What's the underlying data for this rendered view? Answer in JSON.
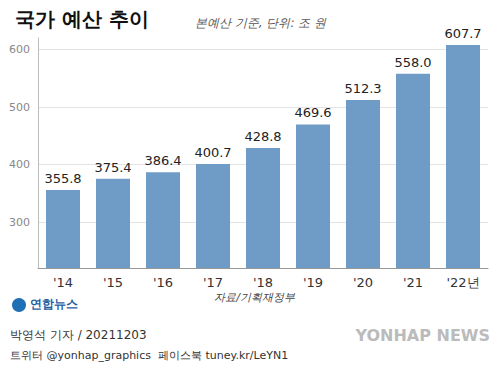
{
  "chart_data": {
    "type": "bar",
    "title": "국가 예산 추이",
    "subtitle": "본예산 기준, 단위: 조 원",
    "categories": [
      "'14",
      "'15",
      "'16",
      "'17",
      "'18",
      "'19",
      "'20",
      "'21",
      "'22년"
    ],
    "values": [
      355.8,
      375.4,
      386.4,
      400.7,
      428.8,
      469.6,
      512.3,
      558.0,
      607.7
    ],
    "value_labels": [
      "355.8",
      "375.4",
      "386.4",
      "400.7",
      "428.8",
      "469.6",
      "512.3",
      "558.0",
      "607.7"
    ],
    "color": "#6f9cc6",
    "ylim": [
      220,
      620
    ],
    "yticks": [
      300,
      400,
      500,
      600
    ],
    "grid": true,
    "data_labels": true,
    "source": "자료/기획재정부",
    "annotations": [
      "연합뉴스",
      "박영석 기자 / 20211203",
      "트위터 @yonhap_graphics  페이스북 tuney.kr/LeYN1",
      "YONHAP NEWS"
    ]
  }
}
